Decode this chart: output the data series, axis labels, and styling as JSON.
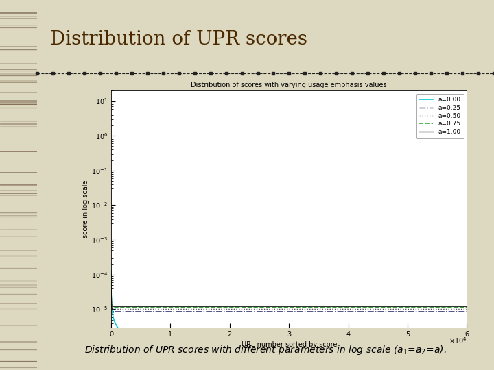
{
  "title_slide": "Distribution of UPR scores",
  "chart_title": "Distribution of scores with varying usage emphasis values",
  "xlabel": "URL number sorted by score",
  "ylabel": "score in log scale",
  "xlim": [
    0,
    60000
  ],
  "xticks": [
    0,
    10000,
    20000,
    30000,
    40000,
    50000,
    60000
  ],
  "xtick_labels": [
    "0",
    "1",
    "2",
    "3",
    "4",
    "5",
    "6"
  ],
  "x_scale_label": "x 10^4",
  "ylim_log": [
    3e-06,
    20
  ],
  "n_points": 60000,
  "bg_color": "#ddd8c0",
  "chart_bg": "#f5f5f0",
  "series": [
    {
      "label": "a=0.00",
      "color": "#00ccdd",
      "linestyle": "solid",
      "linewidth": 1.2
    },
    {
      "label": "a=0.25",
      "color": "#111155",
      "linestyle": "dashdot",
      "linewidth": 1.0
    },
    {
      "label": "a=0.50",
      "color": "#555555",
      "linestyle": "dotted",
      "linewidth": 1.0
    },
    {
      "label": "a=0.75",
      "color": "#33aa33",
      "linestyle": "dashed",
      "linewidth": 1.2
    },
    {
      "label": "a=1.00",
      "color": "#333333",
      "linestyle": "solid",
      "linewidth": 1.0
    }
  ],
  "left_border_color": "#7a3a10",
  "separator_color": "#222222",
  "title_color": "#4a2800",
  "caption_text": "Distribution of UPR scores with different parameters in log scale ($a_1$=$a_2$=$a$)."
}
